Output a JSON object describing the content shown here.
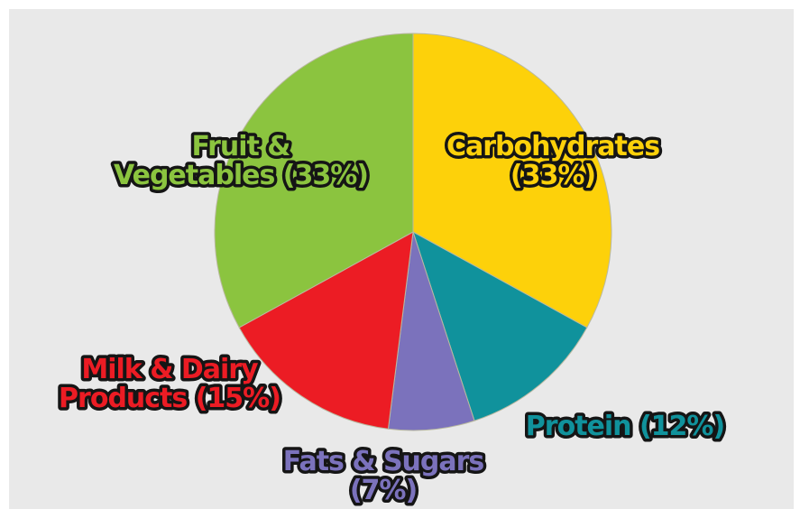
{
  "chart_data": {
    "type": "pie",
    "slices": [
      {
        "name": "Carbohydrates",
        "value": 33,
        "color": "#fdd10a",
        "label_lines": [
          "Carbohydrates",
          "(33%)"
        ]
      },
      {
        "name": "Protein",
        "value": 12,
        "color": "#10929c",
        "label_lines": [
          "Protein (12%)"
        ]
      },
      {
        "name": "Fats & Sugars",
        "value": 7,
        "color": "#7b72bc",
        "label_lines": [
          "Fats & Sugars",
          "(7%)"
        ]
      },
      {
        "name": "Milk & Dairy Products",
        "value": 15,
        "color": "#ec1c24",
        "label_lines": [
          "Milk & Dairy",
          "Products (15%)"
        ]
      },
      {
        "name": "Fruit & Vegetables",
        "value": 33,
        "color": "#8bc43f",
        "label_lines": [
          "Fruit &",
          "Vegetables (33%)"
        ]
      }
    ],
    "start_angle": "top",
    "direction": "clockwise",
    "legend": "none",
    "labels": "outside-or-on-slice, colored to match slice"
  }
}
